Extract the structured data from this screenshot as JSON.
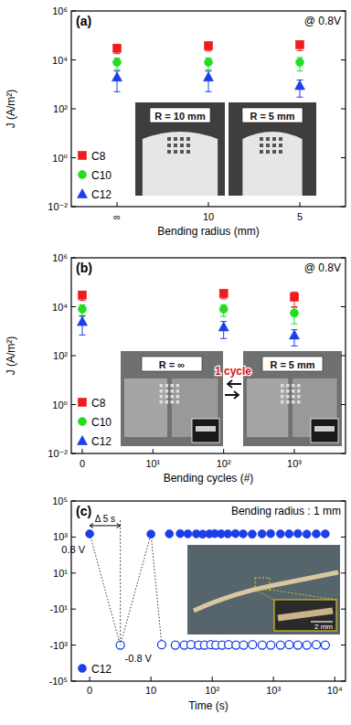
{
  "chart_data": [
    {
      "type": "scatter",
      "annotations": [
        "(a)",
        "@ 0.8V",
        "R = 10 mm",
        "R = 5 mm"
      ],
      "x_label": "Bending radius (mm)",
      "y_label": "J (A/m²)",
      "categories": [
        "∞",
        "10",
        "5"
      ],
      "log": "y",
      "ylim": [
        0.01,
        1000000
      ],
      "yticks": [
        {
          "value": 0.01,
          "label": "10⁻²"
        },
        {
          "value": 1,
          "label": "10⁰"
        },
        {
          "value": 100,
          "label": "10²"
        },
        {
          "value": 10000,
          "label": "10⁴"
        },
        {
          "value": 1000000,
          "label": "10⁶"
        }
      ],
      "legend": "lower left",
      "series": [
        {
          "name": "C8",
          "color": "#ee1c1c",
          "marker": "square",
          "values": [
            30000,
            38000,
            42000
          ],
          "errors": [
            12000,
            15000,
            18000
          ]
        },
        {
          "name": "C10",
          "color": "#22dd22",
          "marker": "circle",
          "values": [
            8000,
            8000,
            8000
          ],
          "errors": [
            4000,
            4000,
            4500
          ]
        },
        {
          "name": "C12",
          "color": "#1a3fe8",
          "marker": "triangle",
          "values": [
            2000,
            2000,
            900
          ],
          "errors": [
            1500,
            1500,
            600
          ]
        }
      ]
    },
    {
      "type": "scatter",
      "annotations": [
        "(b)",
        "@ 0.8V",
        "R = ∞",
        "R = 5 mm",
        "1 cycle"
      ],
      "x_label": "Bending cycles (#)",
      "y_label": "J (A/m²)",
      "categories": [
        "0",
        "10¹",
        "10²",
        "10³"
      ],
      "log": "y",
      "ylim": [
        0.01,
        1000000
      ],
      "yticks": [
        {
          "value": 0.01,
          "label": "10⁻²"
        },
        {
          "value": 1,
          "label": "10⁰"
        },
        {
          "value": 100,
          "label": "10²"
        },
        {
          "value": 10000,
          "label": "10⁴"
        },
        {
          "value": 1000000,
          "label": "10⁶"
        }
      ],
      "legend": "lower left",
      "series": [
        {
          "name": "C8",
          "color": "#ee1c1c",
          "marker": "square",
          "values": [
            30000,
            null,
            35000,
            25000
          ],
          "errors": [
            12000,
            null,
            14000,
            15000
          ]
        },
        {
          "name": "C10",
          "color": "#22dd22",
          "marker": "circle",
          "values": [
            8000,
            null,
            8000,
            5500
          ],
          "errors": [
            4000,
            null,
            4000,
            3500
          ]
        },
        {
          "name": "C12",
          "color": "#1a3fe8",
          "marker": "triangle",
          "values": [
            2500,
            null,
            1500,
            700
          ],
          "errors": [
            1800,
            null,
            1000,
            450
          ]
        }
      ]
    },
    {
      "type": "scatter",
      "annotations": [
        "(c)",
        "0.8 V",
        "Δ 5 s",
        "-0.8 V",
        "Bending radius : 1 mm",
        "2 mm"
      ],
      "x_label": "Time (s)",
      "log": true,
      "xlim": [
        -3,
        15000
      ],
      "xticks": [
        0,
        10,
        {
          "value": 100,
          "label": "10²"
        },
        {
          "value": 1000,
          "label": "10³"
        },
        {
          "value": 10000,
          "label": "10⁴"
        }
      ],
      "ylim": [
        -100000,
        100000
      ],
      "yticks": [
        {
          "value": 100000,
          "label": "10⁵"
        },
        {
          "value": 1000,
          "label": "10³"
        },
        {
          "value": 10,
          "label": "10¹"
        },
        {
          "value": -10,
          "label": "-10¹"
        },
        {
          "value": -1000,
          "label": "-10³"
        },
        {
          "value": -100000,
          "label": "-10⁵"
        }
      ],
      "legend": "lower left",
      "x": [
        0,
        5,
        10,
        15,
        20,
        25,
        30,
        35,
        40,
        45,
        55,
        60,
        70,
        75,
        90,
        95,
        110,
        115,
        140,
        145,
        180,
        185,
        240,
        245,
        320,
        325,
        450,
        455,
        650,
        655,
        900,
        905,
        1300,
        1305,
        1800,
        1805,
        2500,
        2505,
        3500,
        3505,
        5000,
        5005,
        7000,
        7005
      ],
      "series": [
        {
          "name": "C12",
          "color": "#1a3fe8",
          "marker": "circle",
          "values": [
            1500,
            -1000,
            1450,
            -950,
            1500,
            -1000,
            1550,
            -1000,
            1500,
            -950,
            1500,
            -1000,
            1450,
            -1000,
            1500,
            -950,
            1550,
            -1000,
            1500,
            -1000,
            1500,
            -950,
            1550,
            -1000,
            1500,
            -1000,
            1450,
            -950,
            1500,
            -1000,
            1550,
            -1000,
            1500,
            -1000,
            1500,
            -950,
            1550,
            -1000,
            1450,
            -1000,
            1500,
            -950,
            1500,
            -1000
          ]
        }
      ]
    }
  ]
}
